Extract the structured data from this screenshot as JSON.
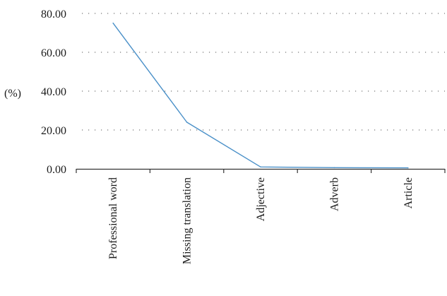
{
  "chart_data": {
    "type": "line",
    "title": "",
    "xlabel": "",
    "ylabel": "(%)",
    "categories": [
      "Professional word",
      "Missing translation",
      "Adjective",
      "Adverb",
      "Article"
    ],
    "series": [
      {
        "values": [
          75.0,
          24.0,
          1.0,
          0.6,
          0.5
        ]
      }
    ],
    "ylim": [
      0,
      80
    ],
    "yticks": [
      "0.00",
      "20.00",
      "40.00",
      "60.00",
      "80.00"
    ],
    "grid": "dotted horizontal",
    "legend": "none",
    "colors": {
      "line": "#4a90c8",
      "axis": "#333333",
      "grid": "#777777"
    }
  }
}
